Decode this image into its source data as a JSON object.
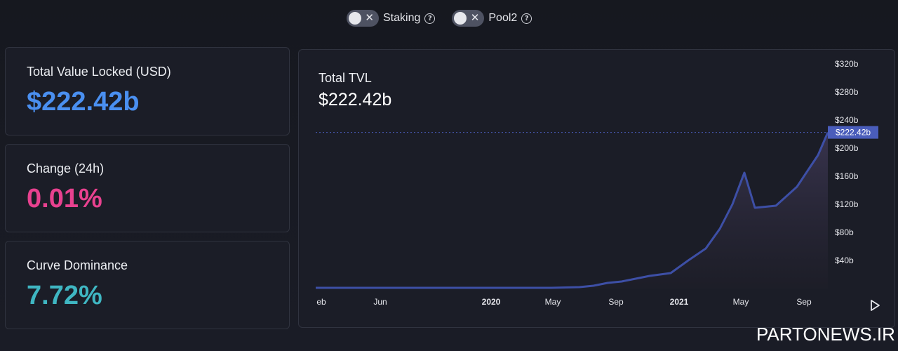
{
  "toggles": [
    {
      "label": "Staking",
      "help": "?",
      "close": "✕"
    },
    {
      "label": "Pool2",
      "help": "?",
      "close": "✕"
    }
  ],
  "stats": {
    "tvl": {
      "label": "Total Value Locked (USD)",
      "value": "$222.42b"
    },
    "change": {
      "label": "Change (24h)",
      "value": "0.01%"
    },
    "dominance": {
      "label": "Curve Dominance",
      "value": "7.72%"
    }
  },
  "chart_card": {
    "title": "Total TVL",
    "value": "$222.42b"
  },
  "chart_data": {
    "type": "area",
    "title": "Total TVL",
    "x_tick_labels": [
      "eb",
      "Jun",
      "2020",
      "May",
      "Sep",
      "2021",
      "May",
      "Sep"
    ],
    "y_tick_labels": [
      "$40b",
      "$80b",
      "$120b",
      "$160b",
      "$200b",
      "$240b",
      "$280b",
      "$320b"
    ],
    "y_ticks": [
      40,
      80,
      120,
      160,
      200,
      240,
      280,
      320
    ],
    "ylim": [
      0,
      320
    ],
    "current_label": "$222.42b",
    "current_value": 222.42,
    "x": [
      "2019-02",
      "2019-06",
      "2019-10",
      "2020-01",
      "2020-03",
      "2020-05",
      "2020-07",
      "2020-08",
      "2020-09",
      "2020-10",
      "2020-11",
      "2020-12",
      "2021-01",
      "2021-02",
      "2021-03",
      "2021-04",
      "2021-05",
      "2021-05b",
      "2021-06",
      "2021-07",
      "2021-08",
      "2021-09",
      "2021-10"
    ],
    "values": [
      1,
      1,
      1,
      1,
      1,
      1,
      2,
      4,
      8,
      10,
      14,
      18,
      22,
      40,
      57,
      85,
      120,
      165,
      115,
      118,
      145,
      190,
      222.42
    ],
    "colors": {
      "line": "#3d4fa6",
      "fill_top": "#3a3550",
      "fill_bottom": "#1e1e28",
      "current_tag": "#4a5dbb"
    }
  },
  "watermark": "PARTONEWS.IR"
}
